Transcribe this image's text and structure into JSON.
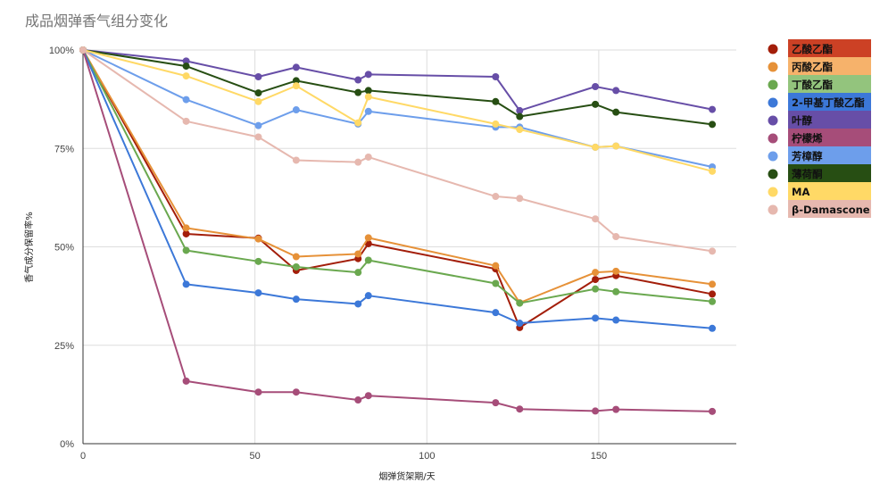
{
  "chart_data": {
    "type": "line",
    "title": "成品烟弹香气组分变化",
    "xlabel": "烟弹货架期/天",
    "ylabel": "香气成分保留率%",
    "xlim": [
      0,
      190
    ],
    "ylim": [
      0,
      100
    ],
    "x_ticks": [
      0,
      50,
      100,
      150
    ],
    "y_ticks": [
      0,
      25,
      50,
      75,
      100
    ],
    "y_tick_labels": [
      "0%",
      "25%",
      "50%",
      "75%",
      "100%"
    ],
    "x": [
      0,
      30,
      51,
      62,
      80,
      83,
      120,
      127,
      149,
      155,
      183
    ],
    "grid": true,
    "legend_position": "right",
    "series": [
      {
        "name": "乙酸乙酯",
        "color": "#a31e0a",
        "legend_bg": "#cc4125",
        "values": [
          100,
          53.3,
          52.2,
          44,
          47,
          50.8,
          44.4,
          29.5,
          41.7,
          42.7,
          38
        ]
      },
      {
        "name": "丙酸乙酯",
        "color": "#e69138",
        "legend_bg": "#f6b26b",
        "values": [
          100,
          54.8,
          52,
          47.5,
          48.2,
          52.3,
          45.2,
          35.8,
          43.5,
          43.8,
          40.5
        ]
      },
      {
        "name": "丁酸乙酯",
        "color": "#6aa84f",
        "legend_bg": "#93c47d",
        "values": [
          100,
          49.1,
          46.3,
          44.9,
          43.5,
          46.6,
          40.7,
          35.7,
          39.3,
          38.6,
          36.1
        ]
      },
      {
        "name": "2-甲基丁酸乙酯",
        "color": "#3c78d8",
        "legend_bg": "#3c78d8",
        "values": [
          100,
          40.5,
          38.3,
          36.7,
          35.5,
          37.6,
          33.3,
          30.6,
          31.9,
          31.4,
          29.3
        ]
      },
      {
        "name": "叶醇",
        "color": "#674ea7",
        "legend_bg": "#674ea7",
        "values": [
          100,
          97.2,
          93.2,
          95.6,
          92.4,
          93.8,
          93.2,
          84.6,
          90.7,
          89.7,
          84.9
        ]
      },
      {
        "name": "柠檬烯",
        "color": "#a64d79",
        "legend_bg": "#a64d79",
        "values": [
          100,
          15.9,
          13.1,
          13.1,
          11.1,
          12.2,
          10.4,
          8.8,
          8.3,
          8.7,
          8.2
        ]
      },
      {
        "name": "芳樟醇",
        "color": "#6d9eeb",
        "legend_bg": "#6d9eeb",
        "values": [
          100,
          87.4,
          80.8,
          84.8,
          81.2,
          84.4,
          80.4,
          80.4,
          75.3,
          75.6,
          70.3
        ]
      },
      {
        "name": "薄荷酮",
        "color": "#274e13",
        "legend_bg": "#274e13",
        "values": [
          100,
          95.9,
          89.1,
          92.2,
          89.2,
          89.7,
          86.9,
          83.1,
          86.2,
          84.2,
          81.1
        ]
      },
      {
        "name": "MA",
        "color": "#ffd966",
        "legend_bg": "#ffd966",
        "values": [
          100,
          93.4,
          86.9,
          90.9,
          81.5,
          88.1,
          81.2,
          79.8,
          75.3,
          75.6,
          69.2
        ]
      },
      {
        "name": "β-Damascone",
        "color": "#e6b8af",
        "legend_bg": "#e6b8af",
        "values": [
          100,
          81.9,
          77.9,
          72,
          71.5,
          72.8,
          62.8,
          62.3,
          57.1,
          52.6,
          48.9
        ]
      }
    ]
  }
}
